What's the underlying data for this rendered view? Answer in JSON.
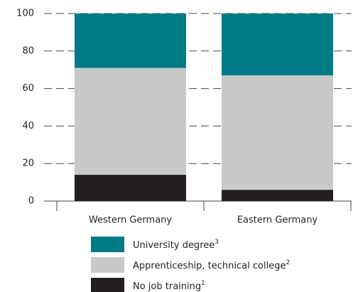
{
  "chart_data": {
    "type": "stacked_bar",
    "categories": [
      "Western Germany",
      "Eastern Germany"
    ],
    "series": [
      {
        "name": "No job training",
        "footnote": "1",
        "color": "#231f20",
        "values": [
          14,
          6
        ]
      },
      {
        "name": "Apprenticeship, technical college",
        "footnote": "2",
        "color": "#c8c9ca",
        "values": [
          57,
          61
        ]
      },
      {
        "name": "University degree",
        "footnote": "3",
        "color": "#007b85",
        "values": [
          29,
          33
        ]
      }
    ],
    "ylim": [
      0,
      100
    ],
    "yticks": [
      0,
      20,
      40,
      60,
      80,
      100
    ],
    "grid": true
  }
}
